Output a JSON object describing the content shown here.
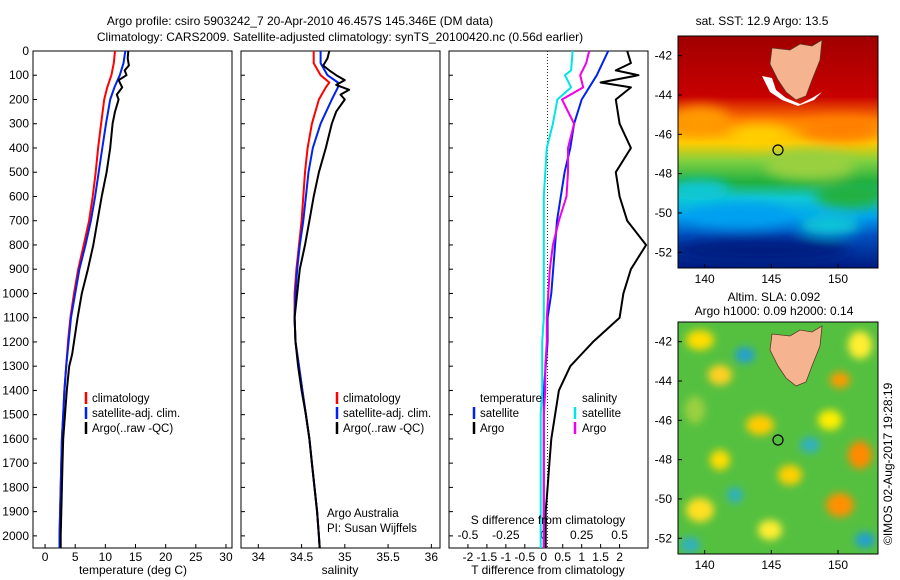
{
  "header": {
    "line1": "Argo profile: csiro 5903242_7 20-Apr-2010 46.457S 145.346E (DM data)",
    "line2": "Climatology: CARS2009. Satellite-adjusted climatology: synTS_20100420.nc (0.56d earlier)"
  },
  "colors": {
    "climatology": "#ff0000",
    "satellite": "#0022ee",
    "argo": "#000000",
    "sal_satellite": "#00e5e5",
    "sal_argo": "#ee00ee"
  },
  "panels": {
    "temperature": {
      "xlabel": "temperature (deg C)",
      "xticks": [
        "0",
        "5",
        "10",
        "15",
        "20",
        "25",
        "30"
      ],
      "yticks": [
        "0",
        "100",
        "200",
        "300",
        "400",
        "500",
        "600",
        "700",
        "800",
        "900",
        "1000",
        "1100",
        "1200",
        "1300",
        "1400",
        "1500",
        "1600",
        "1700",
        "1800",
        "1900",
        "2000"
      ],
      "legend": [
        "climatology",
        "satellite-adj. clim.",
        "Argo(..raw -QC)"
      ]
    },
    "salinity": {
      "xlabel": "salinity",
      "xticks": [
        "34",
        "34.5",
        "35",
        "35.5",
        "36"
      ],
      "legend": [
        "climatology",
        "satellite-adj. clim.",
        "Argo(..raw -QC)"
      ],
      "note1": "Argo Australia",
      "note2": "PI: Susan Wijffels"
    },
    "difference": {
      "xlabel": "T difference from climatology",
      "xticks": [
        "-2",
        "-1.5",
        "-1",
        "-0.5",
        "0",
        "0.5",
        "1",
        "1.5",
        "2"
      ],
      "top_label": "S difference from climatology",
      "top_ticks": [
        "-0.5",
        "-0.25",
        "0",
        "0.25",
        "0.5"
      ],
      "legend_t_title": "temperature",
      "legend_s_title": "salinity",
      "legend_t": [
        "satellite",
        "Argo"
      ],
      "legend_s": [
        "satellite",
        "Argo"
      ]
    },
    "sst_map": {
      "title": "sat. SST: 12.9  Argo: 13.5",
      "yticks": [
        "-42",
        "-44",
        "-46",
        "-48",
        "-50",
        "-52"
      ],
      "xticks": [
        "140",
        "145",
        "150"
      ]
    },
    "sla_map": {
      "title1": "Altim. SLA: 0.092",
      "title2": "Argo h1000: 0.09 h2000: 0.14",
      "yticks": [
        "-42",
        "-44",
        "-46",
        "-48",
        "-50",
        "-52"
      ],
      "xticks": [
        "140",
        "145",
        "150"
      ]
    }
  },
  "credit": "©IMOS 02-Aug-2017 19:28:19",
  "chart_data": [
    {
      "type": "line",
      "title": "",
      "xlabel": "temperature (deg C)",
      "ylabel": "",
      "xlim": [
        -2,
        31
      ],
      "ylim": [
        2050,
        0
      ],
      "series": [
        {
          "name": "climatology",
          "y": [
            0,
            50,
            100,
            150,
            200,
            300,
            400,
            500,
            600,
            700,
            800,
            900,
            1000,
            1100,
            1200,
            1300,
            1400,
            1500,
            1600,
            1700,
            1800,
            1900,
            2000,
            2050
          ],
          "x": [
            11.6,
            11.4,
            11.0,
            10.3,
            9.8,
            9.3,
            8.8,
            8.4,
            7.9,
            7.3,
            6.4,
            5.5,
            4.8,
            4.2,
            3.8,
            3.5,
            3.2,
            3.0,
            2.8,
            2.7,
            2.6,
            2.5,
            2.4,
            2.4
          ]
        },
        {
          "name": "satellite-adj. clim.",
          "y": [
            0,
            50,
            100,
            150,
            200,
            300,
            400,
            500,
            600,
            700,
            800,
            900,
            1000,
            1100,
            1200,
            1300,
            1400,
            1500,
            1600,
            1700,
            1800,
            1900,
            2000,
            2050
          ],
          "x": [
            13.3,
            13.0,
            12.4,
            11.5,
            10.8,
            10.1,
            9.5,
            8.9,
            8.3,
            7.6,
            6.7,
            5.7,
            5.0,
            4.3,
            3.9,
            3.5,
            3.2,
            3.0,
            2.8,
            2.7,
            2.6,
            2.5,
            2.4,
            2.4
          ]
        },
        {
          "name": "Argo(..raw -QC)",
          "y": [
            0,
            30,
            60,
            80,
            100,
            120,
            150,
            180,
            200,
            250,
            300,
            400,
            500,
            600,
            700,
            800,
            900,
            1000,
            1100,
            1150,
            1200,
            1250,
            1300,
            1400,
            1500,
            1600,
            1700,
            1800,
            1900,
            2000,
            2050
          ],
          "x": [
            13.8,
            13.7,
            13.9,
            13.2,
            13.5,
            12.2,
            12.8,
            11.9,
            12.2,
            11.6,
            11.2,
            10.8,
            10.2,
            9.4,
            8.7,
            8.0,
            7.1,
            6.1,
            5.4,
            5.1,
            4.8,
            4.5,
            4.0,
            3.6,
            3.3,
            3.0,
            2.9,
            2.8,
            2.7,
            2.6,
            2.6
          ]
        }
      ]
    },
    {
      "type": "line",
      "title": "",
      "xlabel": "salinity",
      "ylabel": "",
      "xlim": [
        33.8,
        36.1
      ],
      "ylim": [
        2050,
        0
      ],
      "series": [
        {
          "name": "climatology",
          "y": [
            0,
            50,
            100,
            130,
            150,
            200,
            300,
            400,
            500,
            600,
            700,
            800,
            900,
            1000,
            1100,
            1200,
            1300,
            1400,
            1500,
            1600,
            1700,
            1800,
            1900,
            2000,
            2050
          ],
          "x": [
            34.64,
            34.64,
            34.72,
            34.82,
            34.78,
            34.7,
            34.62,
            34.57,
            34.54,
            34.52,
            34.5,
            34.47,
            34.44,
            34.42,
            34.42,
            34.43,
            34.47,
            34.51,
            34.55,
            34.59,
            34.62,
            34.65,
            34.68,
            34.7,
            34.71
          ]
        },
        {
          "name": "satellite-adj. clim.",
          "y": [
            0,
            50,
            100,
            130,
            150,
            200,
            300,
            400,
            500,
            600,
            700,
            800,
            900,
            1000,
            1100,
            1200,
            1300,
            1400,
            1500,
            1600,
            1700,
            1800,
            1900,
            2000,
            2050
          ],
          "x": [
            34.72,
            34.72,
            34.8,
            34.92,
            34.92,
            34.85,
            34.72,
            34.63,
            34.58,
            34.55,
            34.52,
            34.48,
            34.45,
            34.43,
            34.42,
            34.43,
            34.47,
            34.51,
            34.55,
            34.59,
            34.62,
            34.65,
            34.68,
            34.7,
            34.71
          ]
        },
        {
          "name": "Argo(..raw -QC)",
          "y": [
            0,
            30,
            60,
            80,
            100,
            120,
            140,
            160,
            180,
            200,
            250,
            300,
            400,
            500,
            600,
            700,
            800,
            900,
            1000,
            1100,
            1200,
            1300,
            1400,
            1500,
            1600,
            1700,
            1800,
            1900,
            2000,
            2050
          ],
          "x": [
            34.82,
            34.8,
            34.75,
            34.82,
            34.9,
            35.0,
            34.9,
            35.05,
            34.95,
            35.0,
            34.9,
            34.85,
            34.78,
            34.7,
            34.64,
            34.59,
            34.54,
            34.48,
            34.45,
            34.42,
            34.43,
            34.46,
            34.5,
            34.55,
            34.59,
            34.62,
            34.65,
            34.68,
            34.7,
            34.71
          ]
        }
      ]
    },
    {
      "type": "line",
      "title": "",
      "xlabel": "T difference from climatology",
      "x2label": "S difference from climatology",
      "ylabel": "",
      "xlim": [
        -2.5,
        2.75
      ],
      "x2lim": [
        -0.625,
        0.6875
      ],
      "ylim": [
        2050,
        0
      ],
      "series": [
        {
          "name": "temperature satellite",
          "axis": "T",
          "y": [
            0,
            100,
            200,
            300,
            400,
            500,
            600,
            700,
            800,
            900,
            1000,
            1100,
            1200,
            1300,
            1400,
            1500,
            1600,
            1700,
            1800,
            1900,
            2000,
            2050
          ],
          "x": [
            1.7,
            1.4,
            1.0,
            0.8,
            0.7,
            0.55,
            0.45,
            0.35,
            0.3,
            0.25,
            0.2,
            0.1,
            0.1,
            0.05,
            0.0,
            0.0,
            0.0,
            0.0,
            0.0,
            0.0,
            0.0,
            0.0
          ]
        },
        {
          "name": "temperature Argo",
          "axis": "T",
          "y": [
            0,
            50,
            80,
            100,
            130,
            150,
            200,
            300,
            400,
            500,
            600,
            700,
            800,
            900,
            1000,
            1100,
            1200,
            1250,
            1300,
            1400,
            1500,
            1600,
            1700,
            1800,
            1900,
            2000,
            2050
          ],
          "x": [
            2.2,
            2.3,
            1.9,
            2.5,
            1.5,
            2.3,
            1.9,
            2.0,
            2.3,
            1.9,
            2.0,
            2.2,
            2.7,
            2.3,
            2.1,
            2.0,
            1.3,
            1.0,
            0.7,
            0.4,
            0.3,
            0.2,
            0.15,
            0.1,
            0.05,
            0.05,
            0.05
          ]
        },
        {
          "name": "salinity satellite",
          "axis": "S",
          "y": [
            0,
            80,
            100,
            150,
            200,
            300,
            400,
            500,
            600,
            700,
            800,
            900,
            1000,
            1100,
            1200,
            1300,
            1400,
            1500,
            1600,
            1700,
            1800,
            1900,
            2000,
            2050
          ],
          "x": [
            0.19,
            0.18,
            0.14,
            0.18,
            0.09,
            0.06,
            0.02,
            0.01,
            0.0,
            0.0,
            0.0,
            0.0,
            0.0,
            0.0,
            -0.01,
            -0.01,
            -0.01,
            -0.02,
            -0.02,
            -0.02,
            -0.02,
            -0.02,
            -0.02,
            -0.02
          ]
        },
        {
          "name": "salinity Argo",
          "axis": "S",
          "y": [
            0,
            50,
            100,
            150,
            200,
            300,
            400,
            500,
            600,
            700,
            800,
            900,
            1000,
            1100,
            1200,
            1300,
            1400,
            1500,
            1600,
            1700,
            1800,
            1900,
            2000,
            2050
          ],
          "x": [
            0.3,
            0.28,
            0.24,
            0.26,
            0.12,
            0.2,
            0.16,
            0.16,
            0.15,
            0.1,
            0.06,
            0.04,
            0.03,
            0.02,
            0.02,
            0.01,
            0.01,
            0.0,
            0.0,
            0.0,
            0.0,
            0.0,
            0.0,
            0.0
          ]
        }
      ]
    }
  ]
}
